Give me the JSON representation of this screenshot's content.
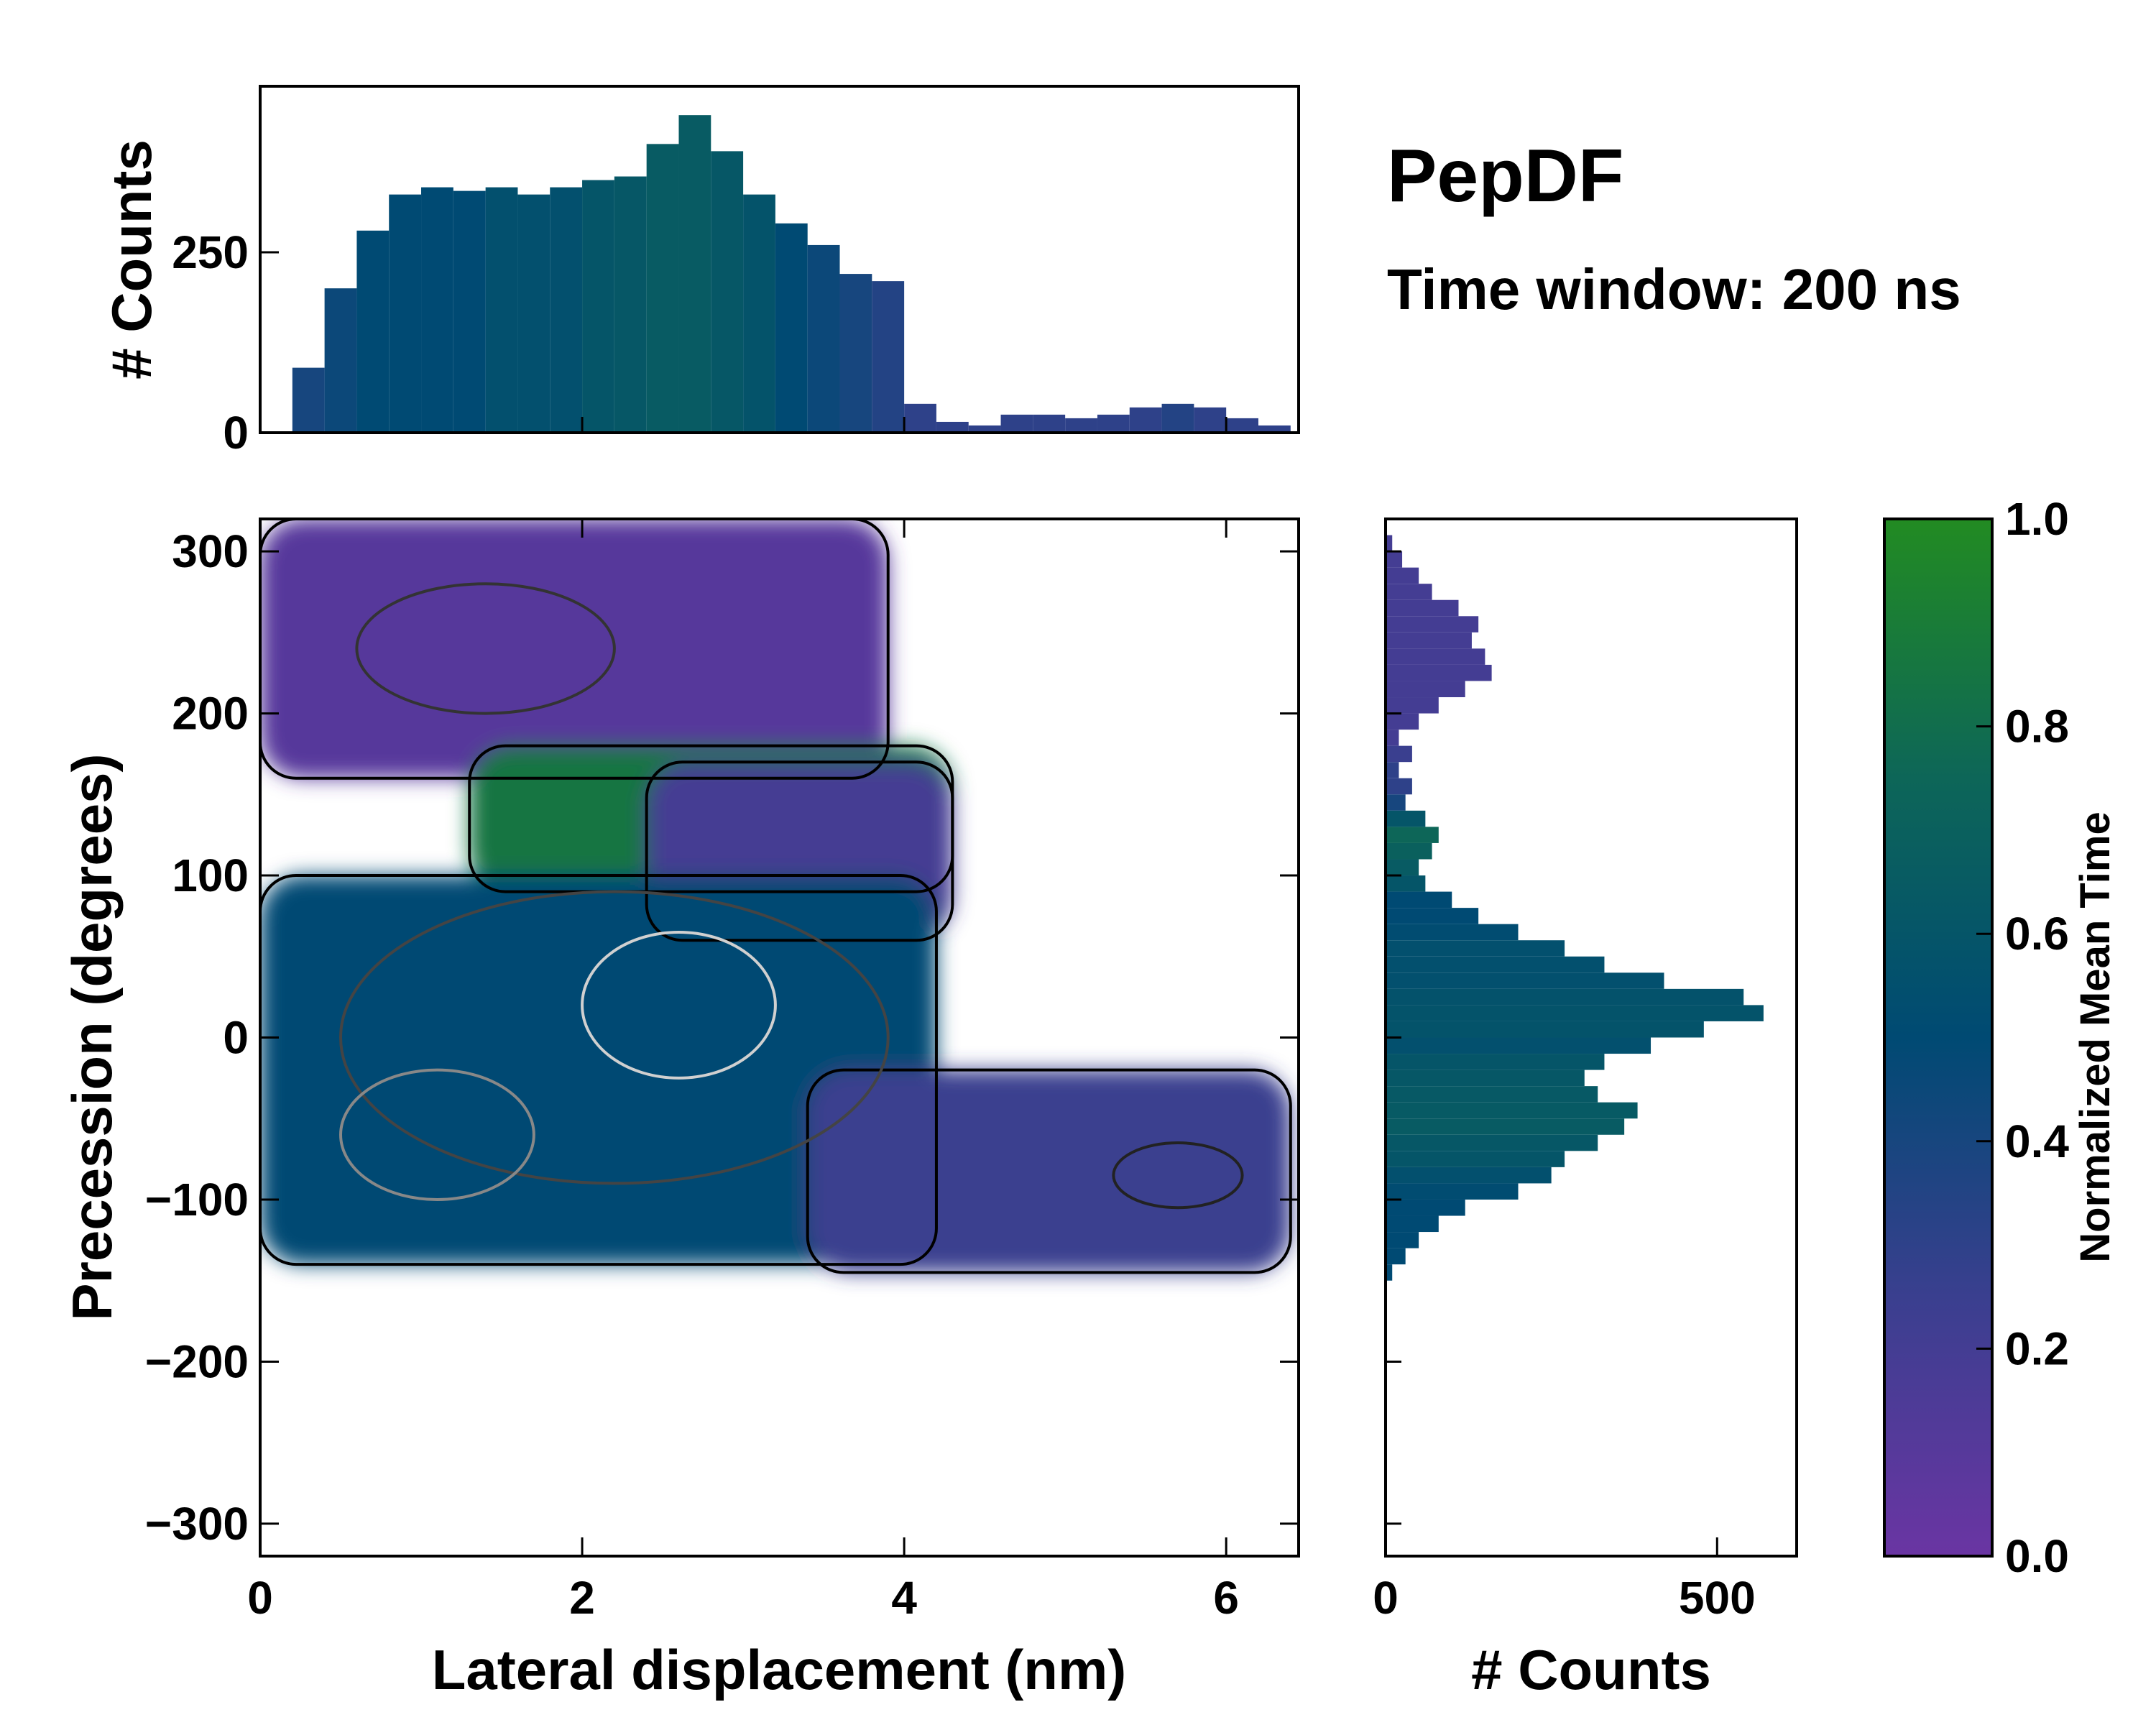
{
  "chart_data": [
    {
      "id": "main",
      "type": "heatmap",
      "xlabel": "Lateral displacement (nm)",
      "ylabel": "Precession (degrees)",
      "xlim": [
        0,
        6.45
      ],
      "ylim": [
        -320,
        320
      ],
      "xticks": [
        0,
        2,
        4,
        6
      ],
      "xtick_labels": [
        "0",
        "2",
        "4",
        "6"
      ],
      "yticks": [
        300,
        200,
        100,
        0,
        -100,
        -200,
        -300
      ],
      "ytick_labels": [
        "300",
        "200",
        "100",
        "0",
        "−100",
        "−200",
        "−300"
      ],
      "colorscale": [
        "#6a35a3",
        "#3a3f8f",
        "#004a73",
        "#0d6658",
        "#228b22"
      ],
      "regions": [
        {
          "name": "upper lobe",
          "x": [
            0.0,
            3.9
          ],
          "y": [
            160,
            320
          ],
          "level": 0.1
        },
        {
          "name": "middle lobe",
          "x": [
            1.3,
            4.3
          ],
          "y": [
            90,
            180
          ],
          "level": 0.85
        },
        {
          "name": "right band",
          "x": [
            2.4,
            4.3
          ],
          "y": [
            60,
            170
          ],
          "level": 0.2
        },
        {
          "name": "central core",
          "x": [
            0.0,
            4.2
          ],
          "y": [
            -140,
            100
          ],
          "level": 0.5
        },
        {
          "name": "lower tail",
          "x": [
            3.4,
            6.4
          ],
          "y": [
            -145,
            -20
          ],
          "level": 0.25
        }
      ]
    },
    {
      "id": "top_hist",
      "type": "bar",
      "ylabel": "# Counts",
      "xlim": [
        0,
        6.45
      ],
      "ylim": [
        0,
        480
      ],
      "yticks": [
        0,
        250
      ],
      "ytick_labels": [
        "0",
        "250"
      ],
      "x": [
        0.0,
        0.2,
        0.4,
        0.6,
        0.8,
        1.0,
        1.2,
        1.4,
        1.6,
        1.8,
        2.0,
        2.2,
        2.4,
        2.6,
        2.8,
        3.0,
        3.2,
        3.4,
        3.6,
        3.8,
        4.0,
        4.2,
        4.4,
        4.6,
        4.8,
        5.0,
        5.2,
        5.4,
        5.6,
        5.8,
        6.0,
        6.2,
        6.4
      ],
      "values": [
        0,
        90,
        200,
        280,
        330,
        340,
        335,
        340,
        330,
        340,
        350,
        355,
        400,
        440,
        390,
        330,
        290,
        260,
        220,
        210,
        40,
        15,
        10,
        25,
        25,
        20,
        25,
        35,
        40,
        35,
        20,
        10,
        0
      ],
      "levels": [
        0.4,
        0.4,
        0.45,
        0.5,
        0.5,
        0.5,
        0.5,
        0.55,
        0.55,
        0.55,
        0.6,
        0.62,
        0.65,
        0.65,
        0.62,
        0.58,
        0.5,
        0.45,
        0.4,
        0.35,
        0.3,
        0.3,
        0.3,
        0.3,
        0.3,
        0.3,
        0.3,
        0.3,
        0.35,
        0.3,
        0.3,
        0.3,
        0.3
      ]
    },
    {
      "id": "right_hist",
      "type": "bar",
      "orientation": "horizontal",
      "xlabel": "# Counts",
      "xlim": [
        0,
        620
      ],
      "ylim": [
        -320,
        320
      ],
      "xticks": [
        0,
        500
      ],
      "xtick_labels": [
        "0",
        "500"
      ],
      "y": [
        320,
        310,
        300,
        290,
        280,
        270,
        260,
        250,
        240,
        230,
        220,
        210,
        200,
        190,
        180,
        170,
        160,
        150,
        140,
        130,
        120,
        110,
        100,
        90,
        80,
        70,
        60,
        50,
        40,
        30,
        20,
        10,
        0,
        -10,
        -20,
        -30,
        -40,
        -50,
        -60,
        -70,
        -80,
        -90,
        -100,
        -110,
        -120,
        -130,
        -140,
        -150
      ],
      "values": [
        0,
        10,
        25,
        50,
        70,
        110,
        140,
        130,
        150,
        160,
        120,
        80,
        50,
        20,
        40,
        20,
        40,
        30,
        60,
        80,
        70,
        50,
        60,
        100,
        140,
        200,
        270,
        330,
        420,
        540,
        570,
        480,
        400,
        330,
        300,
        320,
        380,
        360,
        320,
        270,
        250,
        200,
        120,
        80,
        50,
        30,
        10,
        0
      ],
      "levels": [
        0.2,
        0.2,
        0.2,
        0.2,
        0.2,
        0.2,
        0.2,
        0.2,
        0.2,
        0.2,
        0.2,
        0.2,
        0.2,
        0.2,
        0.25,
        0.3,
        0.3,
        0.4,
        0.6,
        0.75,
        0.7,
        0.65,
        0.6,
        0.5,
        0.5,
        0.52,
        0.55,
        0.55,
        0.55,
        0.57,
        0.58,
        0.58,
        0.55,
        0.6,
        0.62,
        0.63,
        0.64,
        0.65,
        0.62,
        0.6,
        0.55,
        0.52,
        0.5,
        0.5,
        0.5,
        0.5,
        0.5,
        0.5
      ]
    },
    {
      "id": "colorbar",
      "type": "colorbar",
      "label": "Normalized Mean Time",
      "range": [
        0.0,
        1.0
      ],
      "ticks": [
        1.0,
        0.8,
        0.6,
        0.4,
        0.2,
        0.0
      ],
      "tick_labels": [
        "1.0",
        "0.8",
        "0.6",
        "0.4",
        "0.2",
        "0.0"
      ]
    }
  ],
  "annotations": {
    "title": "PepDF",
    "subtitle": "Time window: 200 ns"
  }
}
